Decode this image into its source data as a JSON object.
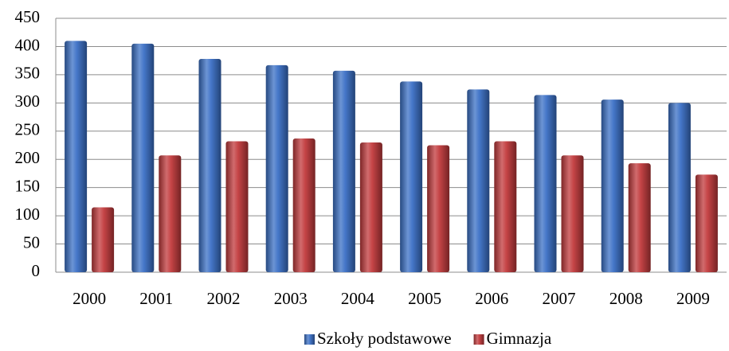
{
  "chart_data": {
    "type": "bar",
    "categories": [
      "2000",
      "2001",
      "2002",
      "2003",
      "2004",
      "2005",
      "2006",
      "2007",
      "2008",
      "2009"
    ],
    "series": [
      {
        "name": "Szkoły podstawowe",
        "color": "#3b70c6",
        "values": [
          410,
          405,
          378,
          367,
          357,
          338,
          324,
          314,
          306,
          300
        ]
      },
      {
        "name": "Gimnazja",
        "color": "#c23a3c",
        "values": [
          115,
          207,
          232,
          237,
          230,
          225,
          232,
          207,
          193,
          173
        ]
      }
    ],
    "ylim": [
      0,
      450
    ],
    "yticks": [
      0,
      50,
      100,
      150,
      200,
      250,
      300,
      350,
      400,
      450
    ],
    "grid": true,
    "legend": "bottom"
  }
}
